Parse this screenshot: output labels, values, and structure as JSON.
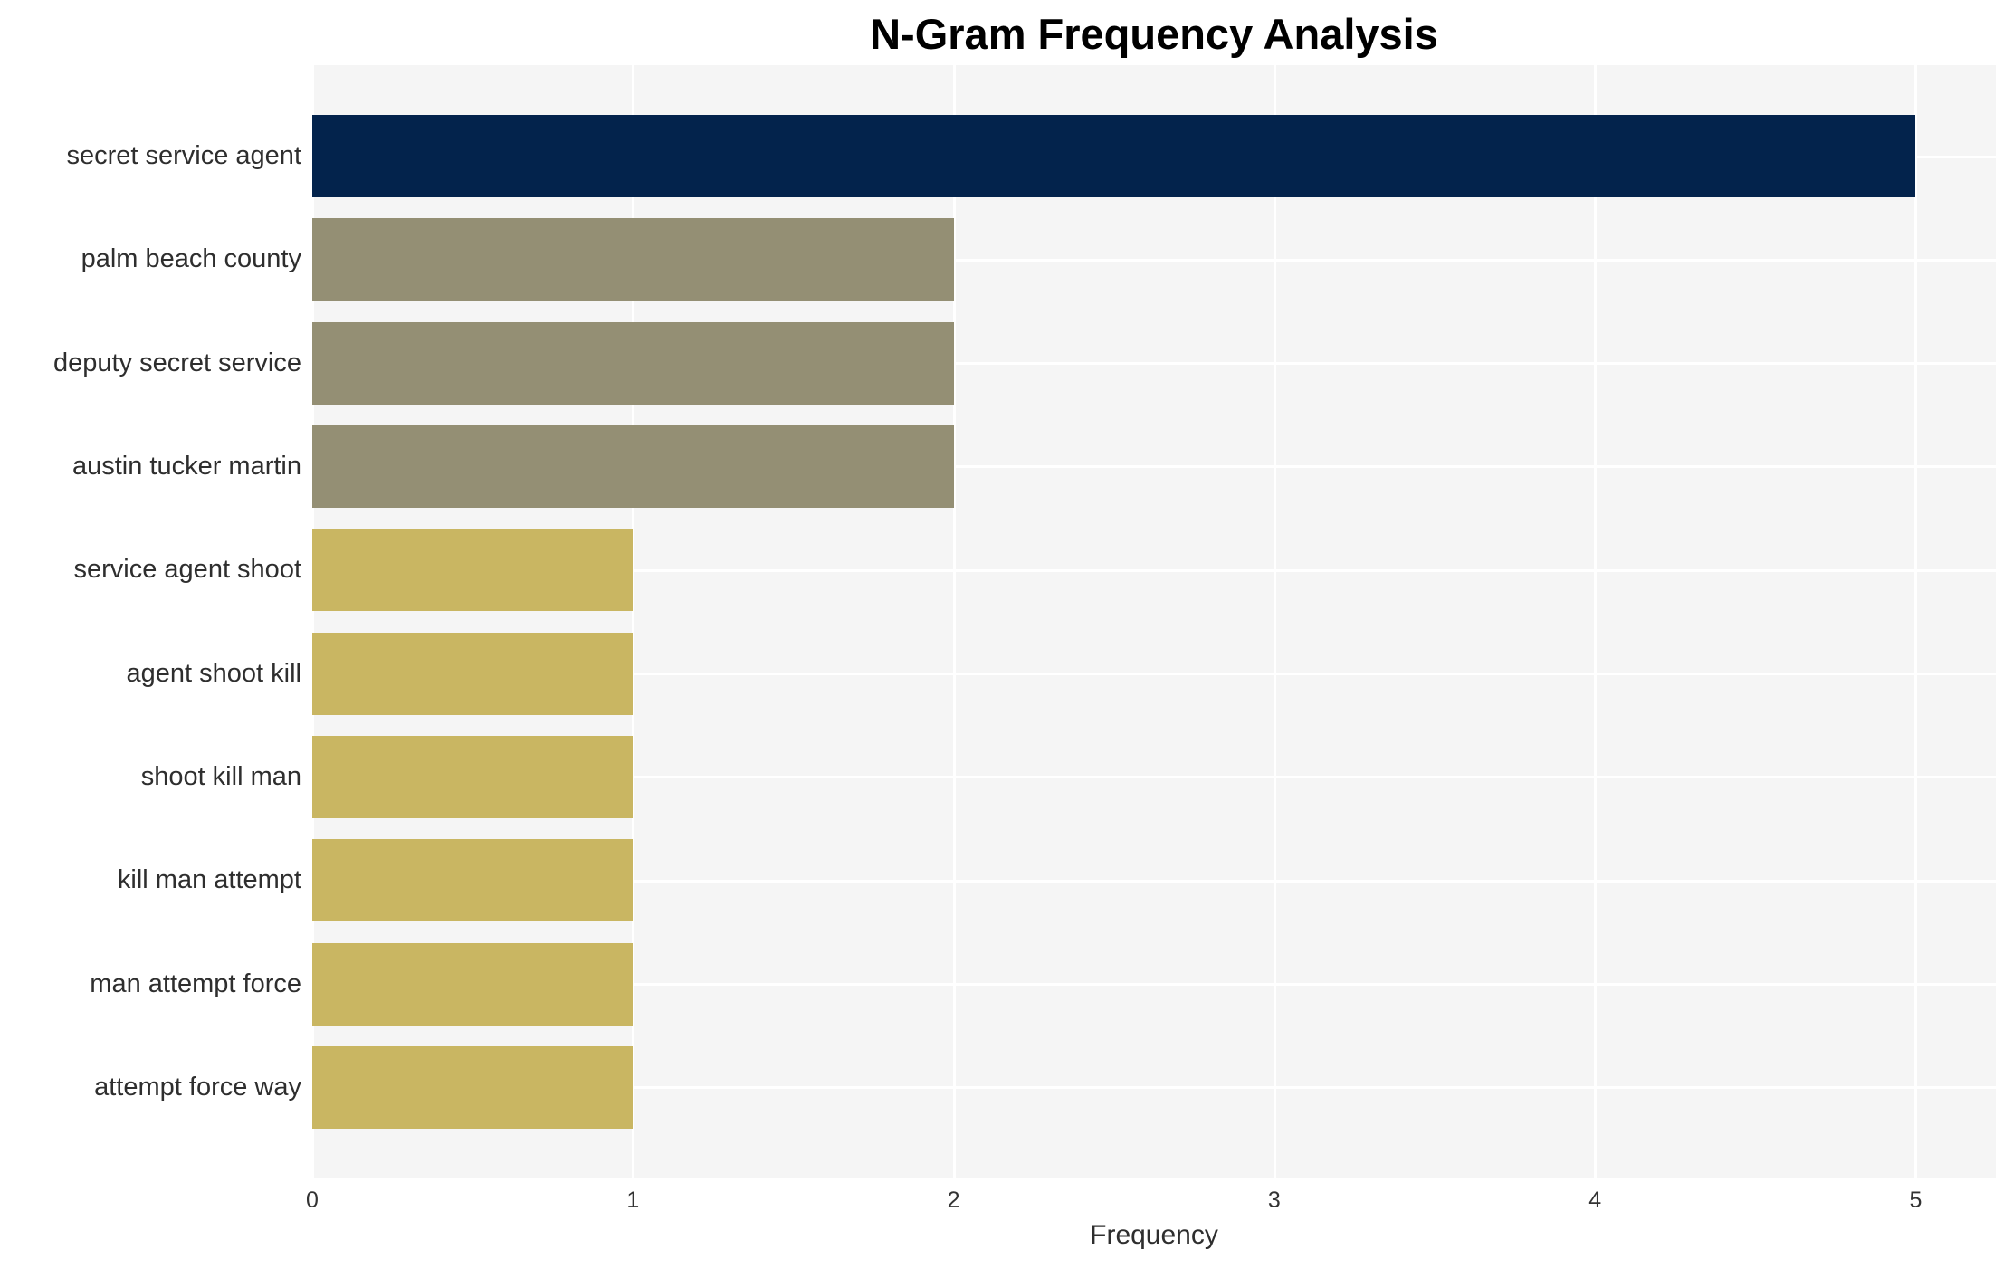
{
  "chart_data": {
    "type": "bar",
    "orientation": "horizontal",
    "title": "N-Gram Frequency Analysis",
    "xlabel": "Frequency",
    "ylabel": "",
    "categories": [
      "secret service agent",
      "palm beach county",
      "deputy secret service",
      "austin tucker martin",
      "service agent shoot",
      "agent shoot kill",
      "shoot kill man",
      "kill man attempt",
      "man attempt force",
      "attempt force way"
    ],
    "values": [
      5,
      2,
      2,
      2,
      1,
      1,
      1,
      1,
      1,
      1
    ],
    "bar_colors": [
      "#03234C",
      "#948F74",
      "#948F74",
      "#948F74",
      "#C9B662",
      "#C9B662",
      "#C9B662",
      "#C9B662",
      "#C9B662",
      "#C9B662"
    ],
    "xticks": [
      0,
      1,
      2,
      3,
      4,
      5
    ],
    "xlim": [
      0,
      5.25
    ],
    "grid": true,
    "legend": false,
    "colors": {
      "plot_background": "#F5F5F5",
      "gridline": "#FFFFFF",
      "title_text": "#000000",
      "label_text": "#2E2E2E",
      "tick_text": "#333333"
    }
  }
}
